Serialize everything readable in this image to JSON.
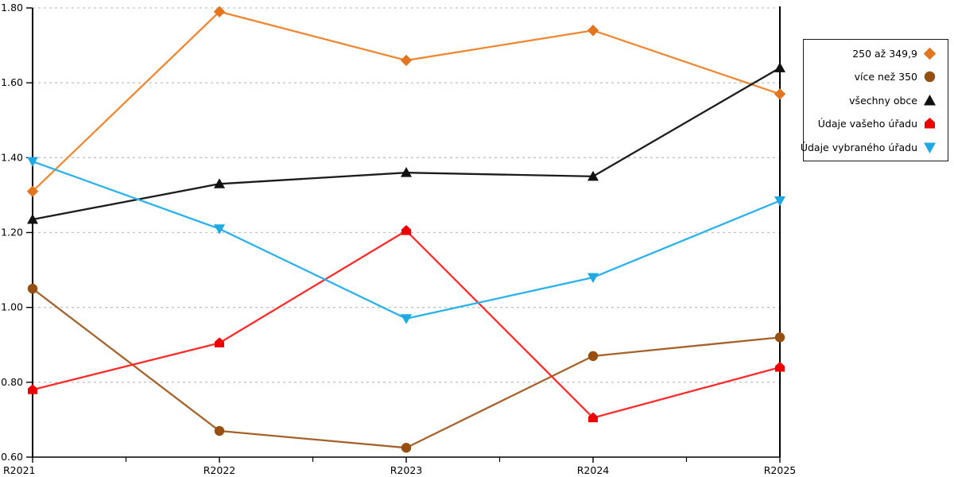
{
  "chart_data": {
    "type": "line",
    "title": "",
    "xlabel": "",
    "ylabel": "",
    "categories": [
      "R2021",
      "R2022",
      "R2023",
      "R2024",
      "R2025"
    ],
    "ylim": [
      0.6,
      1.8
    ],
    "ytick_step": 0.2,
    "ytick_labels": [
      "0.60",
      "0.80",
      "1.00",
      "1.20",
      "1.40",
      "1.60",
      "1.80"
    ],
    "grid": "horizontal-dashed",
    "legend_position": "right-outside-top",
    "series": [
      {
        "name": "250 až 349,9",
        "marker": "diamond",
        "marker_color": "#E2751F",
        "line_color": "#EF8733",
        "values": [
          1.31,
          1.79,
          1.66,
          1.74,
          1.57
        ]
      },
      {
        "name": "více než 350",
        "marker": "circle",
        "marker_color": "#964F10",
        "line_color": "#A5622A",
        "values": [
          1.05,
          0.67,
          0.625,
          0.87,
          0.92
        ]
      },
      {
        "name": "všechny obce",
        "marker": "triangle-up",
        "marker_color": "#111111",
        "line_color": "#1C1C1C",
        "values": [
          1.235,
          1.33,
          1.36,
          1.35,
          1.64
        ]
      },
      {
        "name": "Údaje vašeho úřadu",
        "marker": "pentagon",
        "marker_color": "#EE0000",
        "line_color": "#FF2B2B",
        "values": [
          0.78,
          0.905,
          1.205,
          0.705,
          0.84
        ]
      },
      {
        "name": "Údaje vybraného úřadu",
        "marker": "triangle-down",
        "marker_color": "#1FA9E3",
        "line_color": "#2BB2EC",
        "values": [
          1.39,
          1.21,
          0.97,
          1.08,
          1.285
        ]
      }
    ]
  },
  "colors": {
    "background": "#ffffff",
    "axis": "#000000",
    "gridline": "#c4c4c4",
    "tick_label": "#000000",
    "legend_border": "#1a1a1a"
  }
}
